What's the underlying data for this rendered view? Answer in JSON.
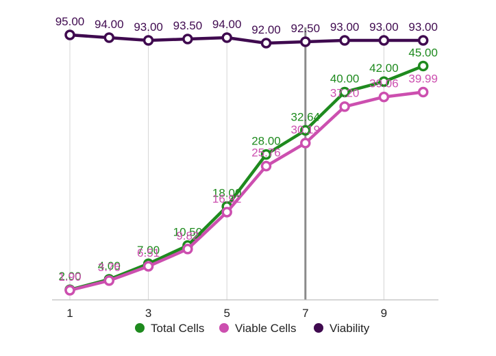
{
  "chart_data": {
    "type": "line",
    "x": [
      1,
      2,
      3,
      4,
      5,
      6,
      7,
      8,
      9,
      10
    ],
    "x_tick_labels": [
      "1",
      "3",
      "5",
      "7",
      "9"
    ],
    "highlight_x": 7,
    "grid": "vertical",
    "legend_position": "bottom",
    "series": [
      {
        "name": "Total Cells",
        "color": "#1e8a1e",
        "values": [
          2.0,
          4.0,
          7.0,
          10.5,
          18.0,
          28.0,
          32.64,
          40.0,
          42.0,
          45.0
        ],
        "labels": [
          "2.00",
          "4.00",
          "7.00",
          "10.50",
          "18.00",
          "28.00",
          "32.64",
          "40.00",
          "42.00",
          "45.00"
        ]
      },
      {
        "name": "Viable Cells",
        "color": "#cc4faf",
        "values": [
          1.9,
          3.76,
          6.51,
          9.82,
          16.92,
          25.76,
          30.19,
          37.2,
          39.06,
          39.99
        ],
        "labels": [
          "1.90",
          "3.76",
          "6.51",
          "9.82",
          "16.92",
          "25.76",
          "30.19",
          "37.20",
          "39.06",
          "39.99"
        ]
      },
      {
        "name": "Viability",
        "color": "#3f0a4f",
        "values": [
          95.0,
          94.0,
          93.0,
          93.5,
          94.0,
          92.0,
          92.5,
          93.0,
          93.0,
          93.0
        ],
        "labels": [
          "95.00",
          "94.00",
          "93.00",
          "93.50",
          "94.00",
          "92.00",
          "92.50",
          "93.00",
          "93.00",
          "93.00"
        ]
      }
    ]
  }
}
